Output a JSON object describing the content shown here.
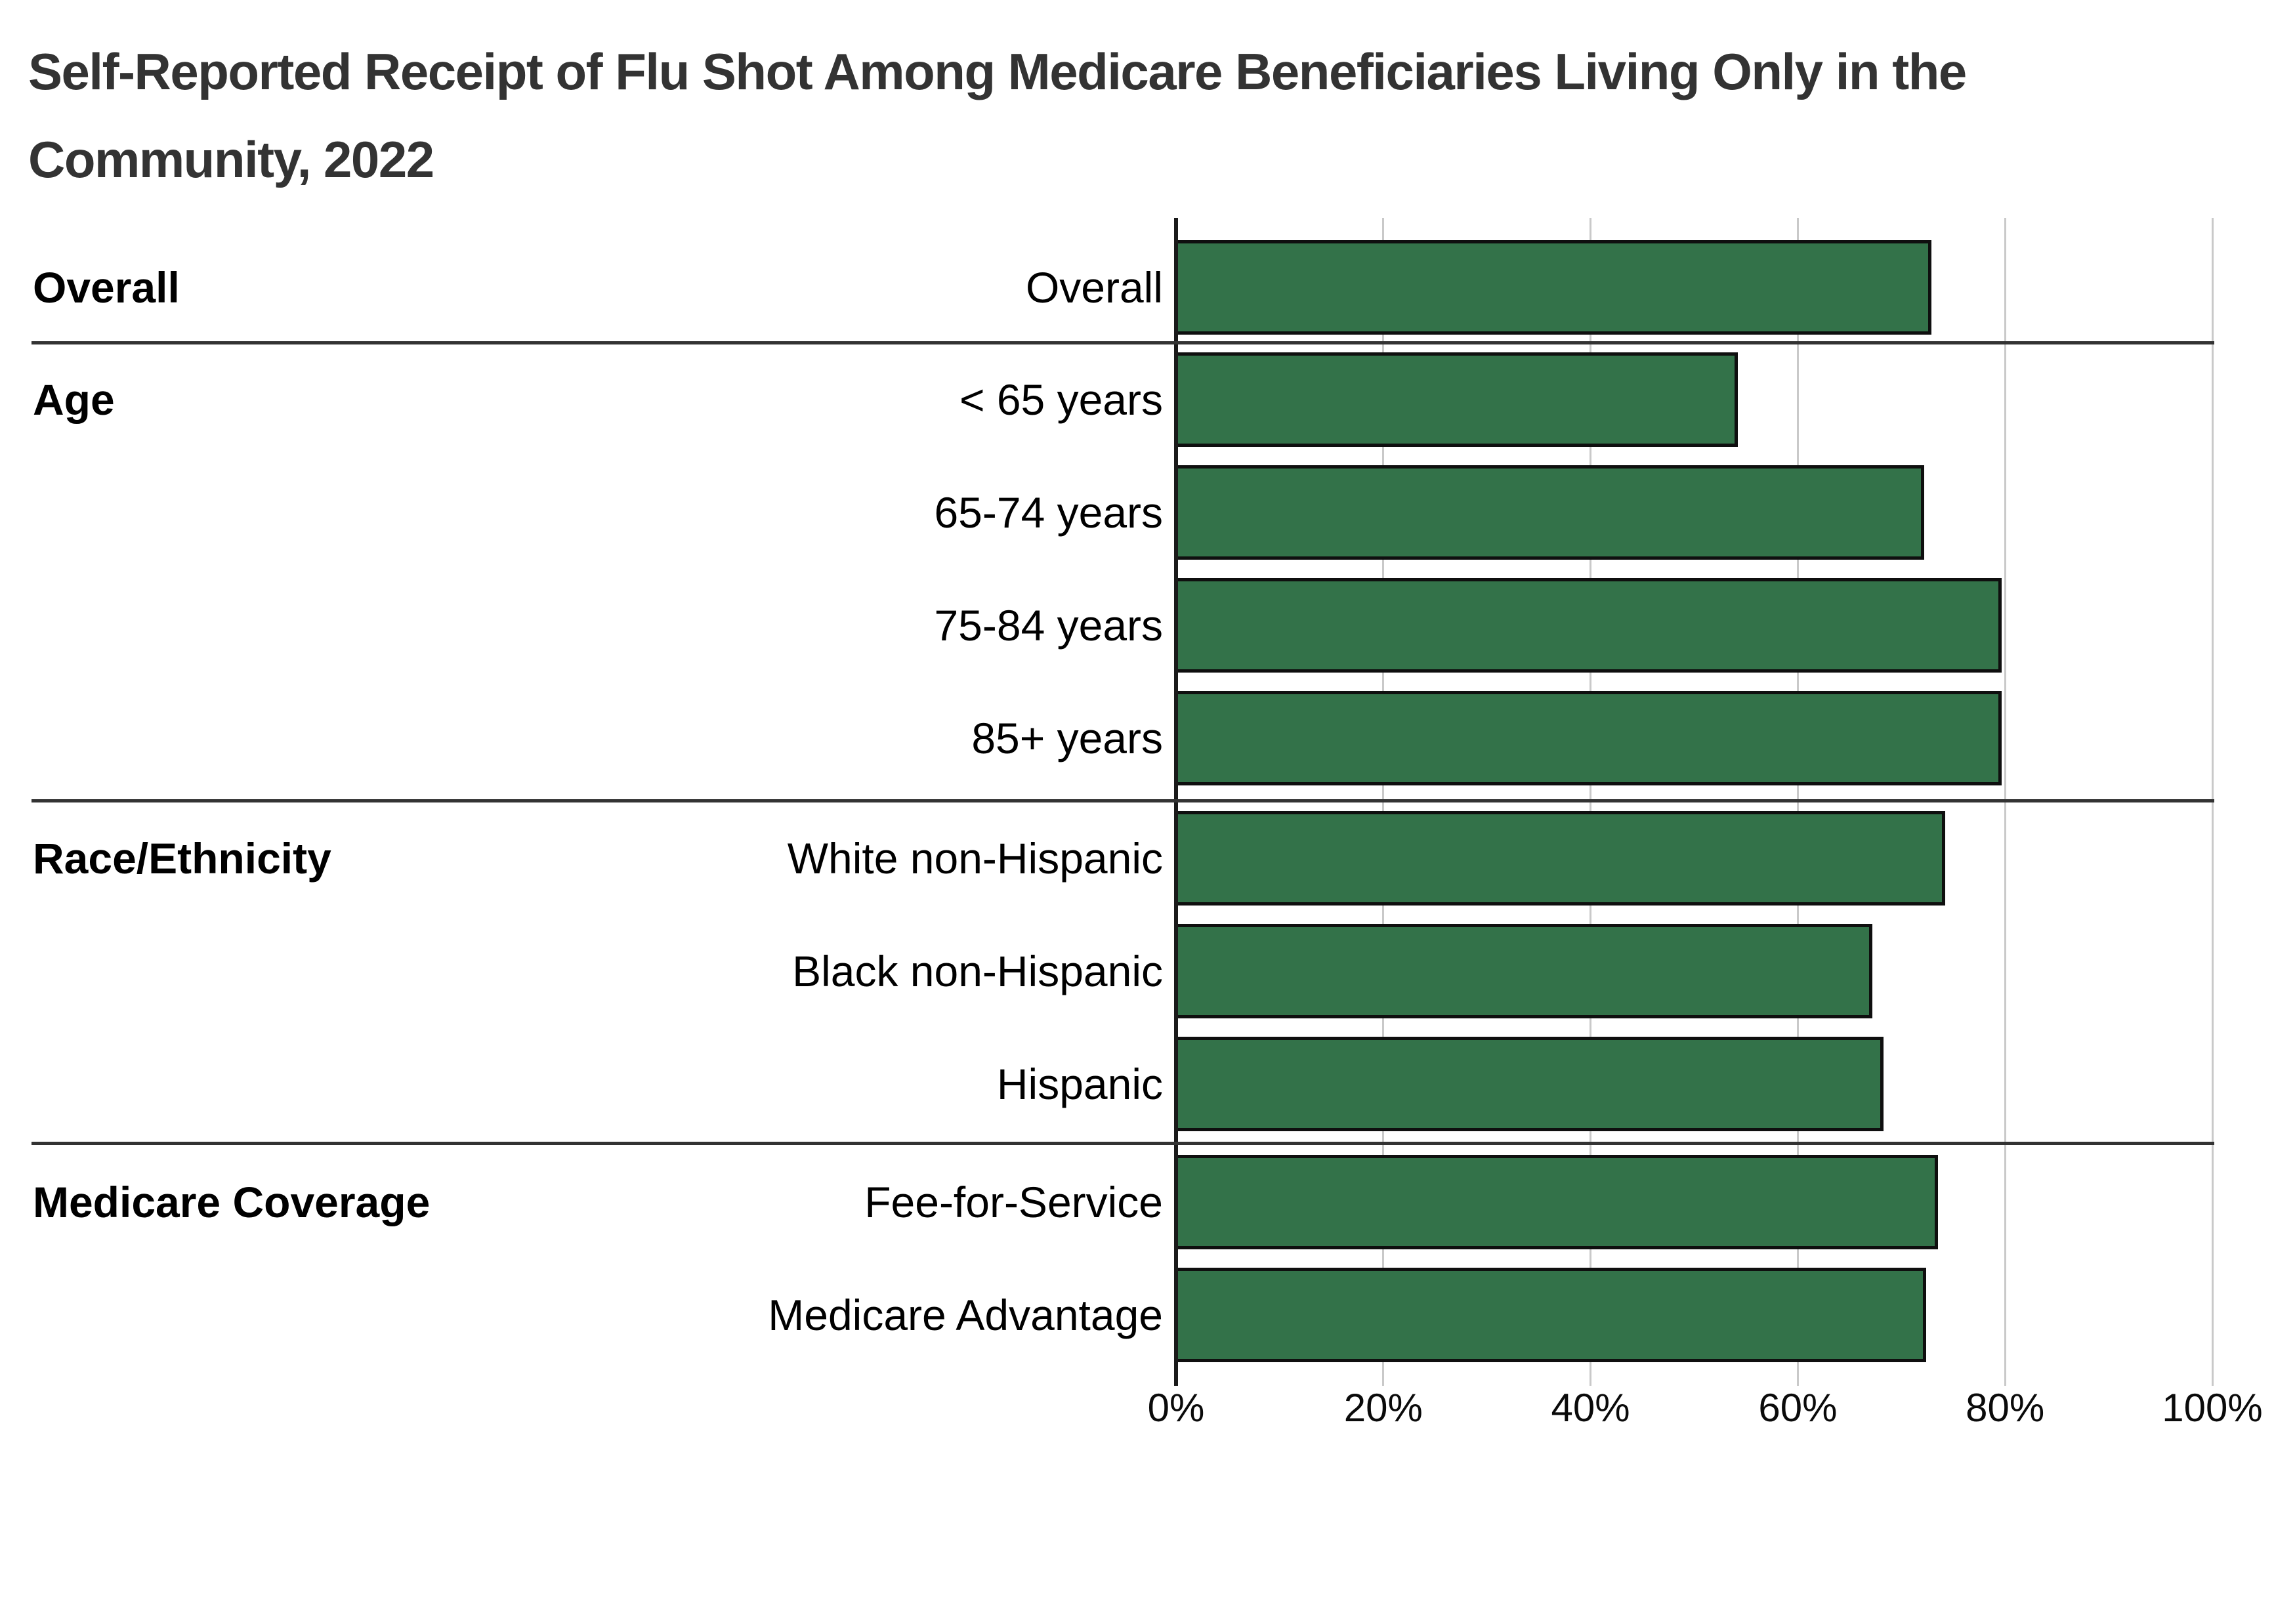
{
  "title": "Self-Reported Receipt of Flu Shot Among Medicare Beneficiaries Living Only in the Community, 2022",
  "title_lines": [
    "Self-Reported Receipt of Flu Shot Among Medicare Beneficiaries Living Only in the",
    "Community, 2022"
  ],
  "chart_data": {
    "type": "bar",
    "orientation": "horizontal",
    "title": "Self-Reported Receipt of Flu Shot Among Medicare Beneficiaries Living Only in the Community, 2022",
    "xlabel": "",
    "ylabel": "",
    "xlim": [
      0,
      100
    ],
    "grid": true,
    "legend": null,
    "x_axis": {
      "tick_labels": [
        "0%",
        "20%",
        "40%",
        "60%",
        "80%",
        "100%"
      ],
      "tick_values": [
        0,
        20,
        40,
        60,
        80,
        100
      ]
    },
    "groups": [
      {
        "label": "Overall",
        "rows": [
          {
            "label": "Overall",
            "value": 72.9
          }
        ]
      },
      {
        "label": "Age",
        "rows": [
          {
            "label": "< 65 years",
            "value": 54.2
          },
          {
            "label": "65-74 years",
            "value": 72.2
          },
          {
            "label": "75-84 years",
            "value": 79.7
          },
          {
            "label": "85+ years",
            "value": 79.7
          }
        ]
      },
      {
        "label": "Race/Ethnicity",
        "rows": [
          {
            "label": "White non-Hispanic",
            "value": 74.2
          },
          {
            "label": "Black non-Hispanic",
            "value": 67.2
          },
          {
            "label": "Hispanic",
            "value": 68.3
          }
        ]
      },
      {
        "label": "Medicare Coverage",
        "rows": [
          {
            "label": "Fee-for-Service",
            "value": 73.5
          },
          {
            "label": "Medicare Advantage",
            "value": 72.4
          }
        ]
      }
    ],
    "colors": {
      "bar_fill": "#337249",
      "bar_border": "#0f0f0f",
      "gridline": "#c9c9c9",
      "axis_line": "#1a1a1a",
      "separator": "#333333",
      "title_text": "#333333",
      "label_text": "#000000"
    }
  }
}
